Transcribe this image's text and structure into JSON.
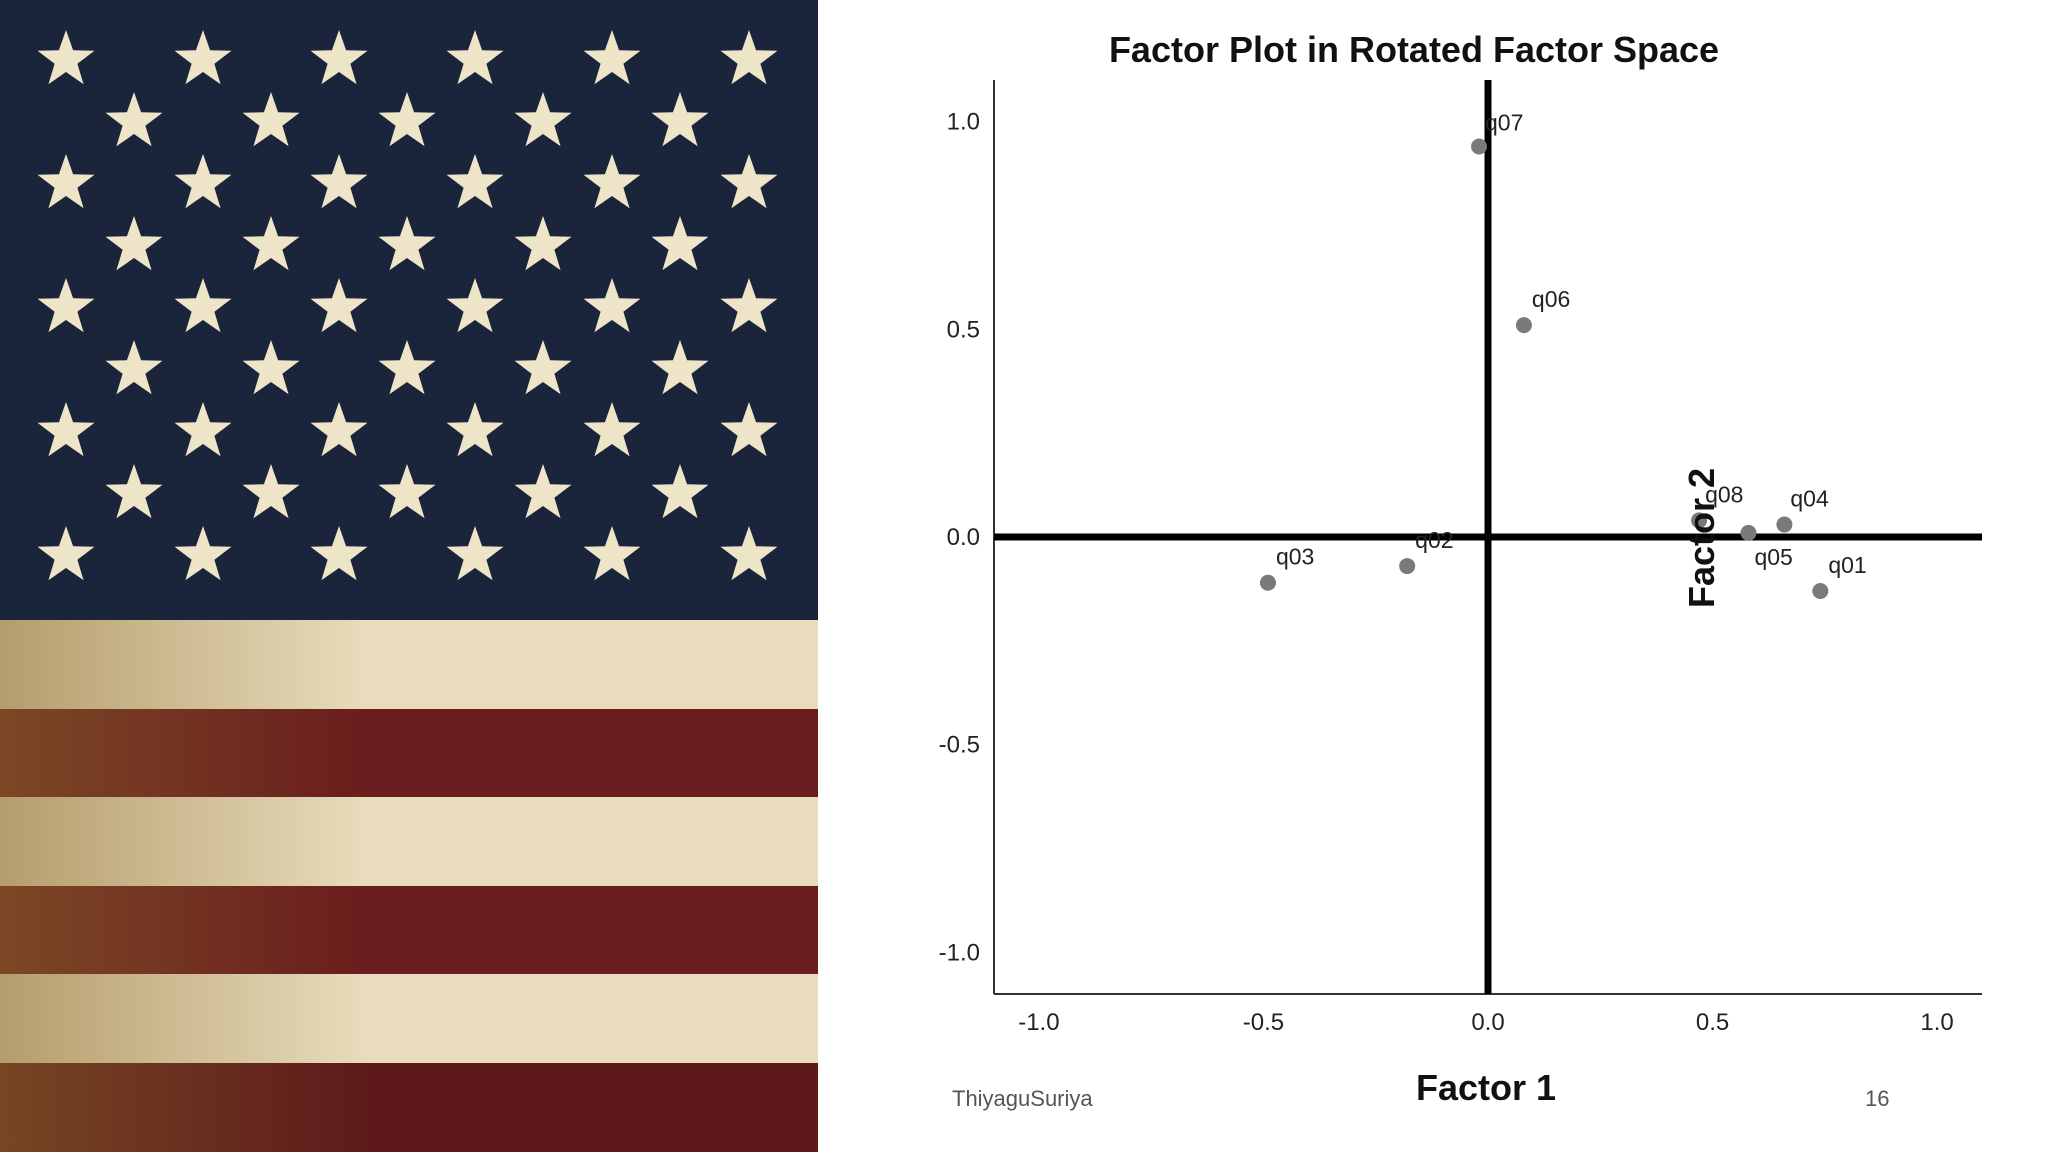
{
  "slide": {
    "author": "ThiyaguSuriya",
    "page_number": "16"
  },
  "flag_image": {
    "subject": "american-flag",
    "colors": {
      "canton": "#1e2a44",
      "star": "#eee4c8",
      "stripe_red": "#6a1d1e",
      "stripe_light": "#e8dcbc"
    }
  },
  "chart_data": {
    "type": "scatter",
    "title": "Factor Plot in Rotated Factor Space",
    "xlabel": "Factor 1",
    "ylabel": "Factor 2",
    "xlim": [
      -1.1,
      1.1
    ],
    "ylim": [
      -1.1,
      1.1
    ],
    "x_ticks": [
      "-1.0",
      "-0.5",
      "0.0",
      "0.5",
      "1.0"
    ],
    "y_ticks": [
      "1.0",
      "0.5",
      "0.0",
      "-0.5",
      "-1.0"
    ],
    "grid": false,
    "point_color": "#7a7a7a",
    "points": [
      {
        "label": "q07",
        "x": -0.02,
        "y": 0.94
      },
      {
        "label": "q06",
        "x": 0.08,
        "y": 0.51
      },
      {
        "label": "q08",
        "x": 0.47,
        "y": 0.04
      },
      {
        "label": "q04",
        "x": 0.66,
        "y": 0.03
      },
      {
        "label": "q05",
        "x": 0.58,
        "y": 0.01
      },
      {
        "label": "q01",
        "x": 0.74,
        "y": -0.13
      },
      {
        "label": "q02",
        "x": -0.18,
        "y": -0.07
      },
      {
        "label": "q03",
        "x": -0.49,
        "y": -0.11
      }
    ]
  }
}
